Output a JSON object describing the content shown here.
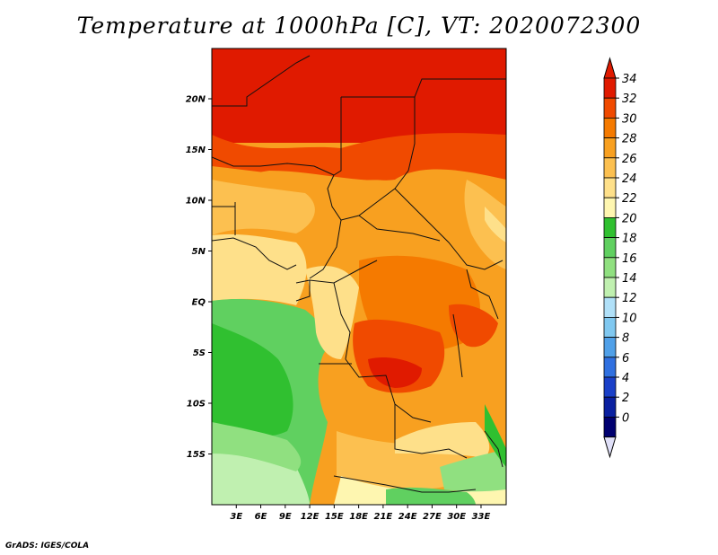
{
  "title": "Temperature at 1000hPa [C], VT: 2020072300",
  "credit": "GrADS: IGES/COLA",
  "map": {
    "lon_labels": [
      "3E",
      "6E",
      "9E",
      "12E",
      "15E",
      "18E",
      "21E",
      "24E",
      "27E",
      "30E",
      "33E"
    ],
    "lat_labels": [
      "20N",
      "15N",
      "10N",
      "5N",
      "EQ",
      "5S",
      "10S",
      "15S"
    ]
  },
  "colorbar": {
    "labels": [
      "34",
      "32",
      "30",
      "28",
      "26",
      "24",
      "22",
      "20",
      "18",
      "16",
      "14",
      "12",
      "10",
      "8",
      "6",
      "4",
      "2",
      "0"
    ],
    "colors": [
      "#e01a00",
      "#f04a00",
      "#f57a00",
      "#f8a020",
      "#fcc050",
      "#fee08a",
      "#fef6b0",
      "#30c030",
      "#60d060",
      "#90e080",
      "#c0f0b0",
      "#b0e0f8",
      "#80c8f0",
      "#50a0e8",
      "#3070e0",
      "#1a40c8",
      "#0a20a0",
      "#000070"
    ],
    "over_color": "#e01a00",
    "under_color": "#e0e0f8"
  }
}
